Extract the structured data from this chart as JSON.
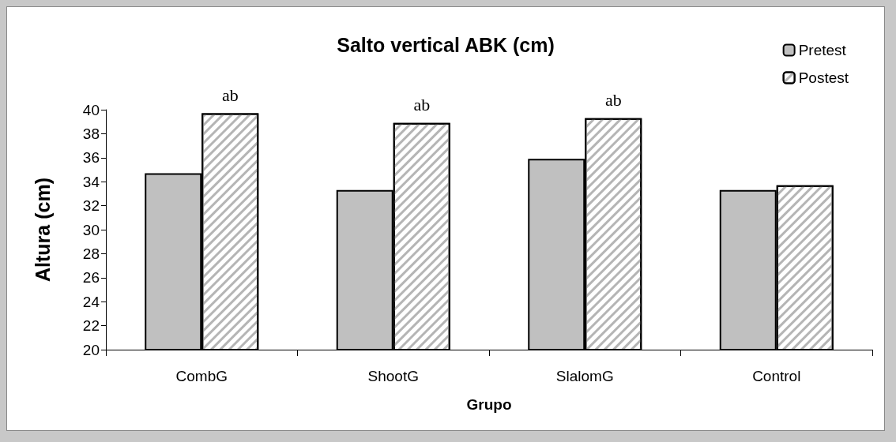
{
  "chart_data": {
    "type": "bar",
    "title": "Salto vertical ABK (cm)",
    "xlabel": "Grupo",
    "ylabel": "Altura (cm)",
    "categories": [
      "CombG",
      "ShootG",
      "SlalomG",
      "Control"
    ],
    "series": [
      {
        "name": "Pretest",
        "color": "#c0c0c0",
        "values": [
          34.7,
          33.3,
          35.9,
          33.3
        ]
      },
      {
        "name": "Postest",
        "color": "#ffffff",
        "values": [
          39.7,
          38.9,
          39.3,
          33.7
        ]
      }
    ],
    "ylim": [
      20,
      40
    ],
    "yticks": [
      20,
      22,
      24,
      26,
      28,
      30,
      32,
      34,
      36,
      38,
      40
    ],
    "grid": false,
    "legend": "top right",
    "annotations": [
      {
        "text": "ab",
        "x": "CombG",
        "y": 39.7
      },
      {
        "text": "ab",
        "x": "ShootG",
        "y": 38.9
      },
      {
        "text": "ab",
        "x": "SlalomG",
        "y": 39.3
      }
    ]
  }
}
